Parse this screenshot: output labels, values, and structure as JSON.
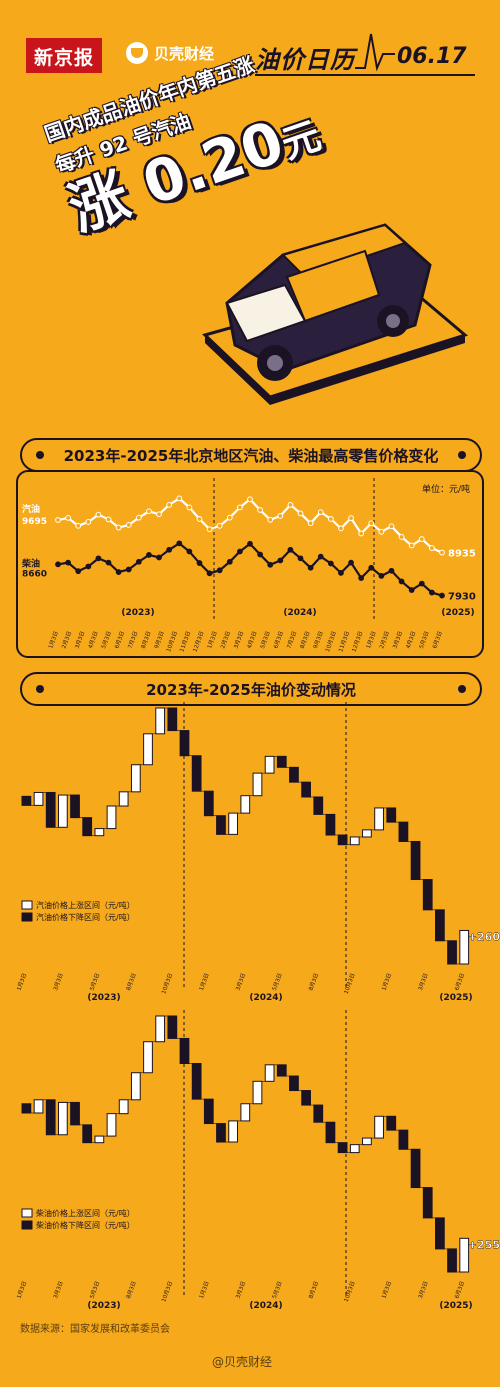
{
  "header": {
    "newspaper": "新京报",
    "brand": "贝壳财经",
    "column": "油价日历",
    "date": "06.17"
  },
  "headline": {
    "line1": "国内成品油价年内第五涨",
    "line2": "每升 92 号汽油",
    "big_prefix": "涨",
    "big_value": "0.20",
    "big_unit": "元"
  },
  "section1": {
    "title": "2023年-2025年北京地区汽油、柴油最高零售价格变化"
  },
  "section2": {
    "title": "2023年-2025年油价变动情况"
  },
  "footer": {
    "source": "数据来源：国家发展和改革委员会",
    "watermark": "@贝壳财经"
  },
  "colors": {
    "background": "#f6a91a",
    "ink": "#1b1324",
    "rise": "#ffffff",
    "fall": "#1b1324"
  },
  "chart_data": [
    {
      "type": "line",
      "unit_label": "单位：元/吨",
      "years": [
        "(2023)",
        "(2024)",
        "(2025)"
      ],
      "x_labels": [
        "1月3日",
        "2月3日",
        "3月3日",
        "4月3日",
        "5月3日",
        "6月3日",
        "7月3日",
        "8月3日",
        "9月3日",
        "10月3日",
        "11月3日",
        "12月3日",
        "1月3日",
        "2月3日",
        "3月3日",
        "4月3日",
        "5月3日",
        "6月3日",
        "7月3日",
        "8月3日",
        "9月3日",
        "10月3日",
        "11月3日",
        "12月3日",
        "1月3日",
        "2月3日",
        "3月3日",
        "4月3日",
        "5月3日",
        "6月3日"
      ],
      "series": [
        {
          "name": "汽油",
          "start_label": "9695",
          "end_label": "8935",
          "color": "#ffffff",
          "values": [
            9695,
            9745,
            9560,
            9650,
            9820,
            9710,
            9520,
            9580,
            9750,
            9900,
            9830,
            10050,
            10200,
            9990,
            9720,
            9480,
            9560,
            9750,
            9990,
            10180,
            9930,
            9700,
            9790,
            10050,
            9850,
            9620,
            9880,
            9720,
            9500,
            9740,
            9380,
            9620,
            9420,
            9550,
            9300,
            9100,
            9250,
            9040,
            8935
          ]
        },
        {
          "name": "柴油",
          "start_label": "8660",
          "end_label": "7930",
          "color": "#1b1324",
          "values": [
            8660,
            8700,
            8500,
            8610,
            8800,
            8700,
            8480,
            8540,
            8720,
            8880,
            8820,
            9000,
            9150,
            8960,
            8690,
            8450,
            8520,
            8720,
            8960,
            9140,
            8890,
            8650,
            8750,
            9000,
            8800,
            8580,
            8840,
            8680,
            8460,
            8700,
            8340,
            8580,
            8390,
            8510,
            8260,
            8060,
            8210,
            8000,
            7930
          ]
        }
      ]
    },
    {
      "type": "waterfall",
      "series_name": "汽油",
      "legend": [
        "汽油价格上涨区间（元/吨）",
        "汽油价格下降区间（元/吨）"
      ],
      "callout": "+260",
      "changes": [
        -70,
        100,
        -270,
        250,
        -175,
        -140,
        55,
        175,
        110,
        210,
        240,
        200,
        -175,
        -195,
        -275,
        -190,
        -145,
        165,
        135,
        175,
        130,
        -85,
        -115,
        -115,
        -135,
        -160,
        -75,
        60,
        55,
        170,
        -110,
        -150,
        -295,
        -235,
        -240,
        -180,
        260
      ]
    },
    {
      "type": "waterfall",
      "series_name": "柴油",
      "legend": [
        "柴油价格上涨区间（元/吨）",
        "柴油价格下降区间（元/吨）"
      ],
      "callout": "+255",
      "changes": [
        -70,
        100,
        -265,
        245,
        -170,
        -135,
        50,
        170,
        105,
        205,
        235,
        195,
        -170,
        -190,
        -270,
        -185,
        -140,
        160,
        130,
        170,
        125,
        -85,
        -110,
        -110,
        -130,
        -155,
        -75,
        60,
        50,
        165,
        -105,
        -145,
        -290,
        -230,
        -235,
        -175,
        255
      ]
    }
  ]
}
